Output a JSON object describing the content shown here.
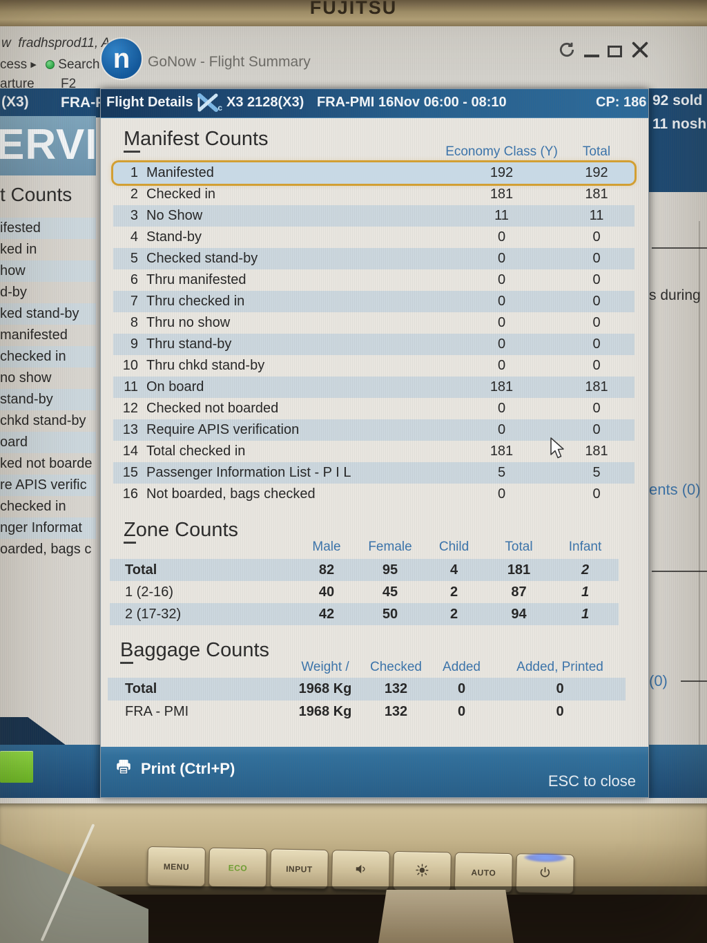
{
  "colors": {
    "accent_blue": "#3b74ab",
    "navy_bar": "#1d4a74",
    "stripe": "#ccd7de",
    "highlight_border": "#d29f33",
    "print_bar": "#31709c",
    "green_button": "#72c230",
    "eco_green": "#6f9e33"
  },
  "monitor": {
    "brand": "FUJITSU",
    "buttons": [
      {
        "label": "MENU",
        "icon": null
      },
      {
        "label": "ECO",
        "icon": null,
        "eco": true
      },
      {
        "label": "INPUT",
        "icon": null
      },
      {
        "label": "",
        "icon": "speaker"
      },
      {
        "label": "",
        "icon": "brightness"
      },
      {
        "label": "AUTO",
        "icon": null
      },
      {
        "label": "",
        "icon": "power",
        "led": true
      }
    ]
  },
  "background_window": {
    "frag_line1a": "w",
    "frag_line1b": "fradhsprod11, A",
    "frag_line2a": "cess",
    "frag_search": "Search",
    "frag_line3a": "arture",
    "frag_f2": "F2",
    "logo_letter": "n",
    "app_title": "GoNow - Flight Summary",
    "bar_left1": "(X3)",
    "bar_left2": "FRA-P",
    "bar_right1": "92 sold",
    "bar_right2": "11 nosh",
    "watermark": "ERVIE",
    "left_heading": "t Counts",
    "left_rows": [
      "ifested",
      "ked in",
      "how",
      "d-by",
      "ked stand-by",
      "manifested",
      "checked in",
      "no show",
      "stand-by",
      "chkd stand-by",
      "oard",
      "ked not boarde",
      "re APIS verific",
      "checked in",
      "nger Informat",
      "oarded, bags c"
    ],
    "right_frag_during": "s during",
    "right_frag_ents": "ents (0)",
    "right_frag_zero": "(0)",
    "icons": {
      "expand_arrow": "▶"
    }
  },
  "dialog": {
    "header": {
      "title": "Flight Details |",
      "flight": "X3 2128(X3)",
      "route": "FRA-PMI",
      "datetime": "16Nov 06:00 - 08:10",
      "cp": "CP: 186"
    },
    "manifest": {
      "title": "Manifest Counts",
      "col_eco": "Economy Class (Y)",
      "col_total": "Total",
      "rows": [
        {
          "num": "1",
          "label": "Manifested",
          "eco": "192",
          "total": "192",
          "highlight": true
        },
        {
          "num": "2",
          "label": "Checked in",
          "eco": "181",
          "total": "181"
        },
        {
          "num": "3",
          "label": "No Show",
          "eco": "11",
          "total": "11"
        },
        {
          "num": "4",
          "label": "Stand-by",
          "eco": "0",
          "total": "0"
        },
        {
          "num": "5",
          "label": "Checked stand-by",
          "eco": "0",
          "total": "0"
        },
        {
          "num": "6",
          "label": "Thru manifested",
          "eco": "0",
          "total": "0"
        },
        {
          "num": "7",
          "label": "Thru checked in",
          "eco": "0",
          "total": "0"
        },
        {
          "num": "8",
          "label": "Thru no show",
          "eco": "0",
          "total": "0"
        },
        {
          "num": "9",
          "label": "Thru stand-by",
          "eco": "0",
          "total": "0"
        },
        {
          "num": "10",
          "label": "Thru chkd stand-by",
          "eco": "0",
          "total": "0"
        },
        {
          "num": "11",
          "label": "On board",
          "eco": "181",
          "total": "181"
        },
        {
          "num": "12",
          "label": "Checked not boarded",
          "eco": "0",
          "total": "0"
        },
        {
          "num": "13",
          "label": "Require APIS verification",
          "eco": "0",
          "total": "0"
        },
        {
          "num": "14",
          "label": "Total checked in",
          "eco": "181",
          "total": "181"
        },
        {
          "num": "15",
          "label": "Passenger Information List - P I L",
          "eco": "5",
          "total": "5"
        },
        {
          "num": "16",
          "label": "Not boarded, bags checked",
          "eco": "0",
          "total": "0"
        }
      ]
    },
    "zone": {
      "title": "Zone Counts",
      "columns": [
        "Male",
        "Female",
        "Child",
        "Total",
        "Infant"
      ],
      "rows": [
        {
          "label": "Total",
          "bold": true,
          "values": [
            "82",
            "95",
            "4",
            "181",
            "2"
          ]
        },
        {
          "label": "1 (2-16)",
          "bold": false,
          "values": [
            "40",
            "45",
            "2",
            "87",
            "1"
          ]
        },
        {
          "label": "2 (17-32)",
          "bold": false,
          "values": [
            "42",
            "50",
            "2",
            "94",
            "1"
          ]
        }
      ]
    },
    "baggage": {
      "title": "Baggage Counts",
      "columns": [
        "Weight /",
        "Checked",
        "Added",
        "Added, Printed"
      ],
      "rows": [
        {
          "label": "Total",
          "bold": true,
          "values": [
            "1968 Kg",
            "132",
            "0",
            "0"
          ]
        },
        {
          "label": "FRA - PMI",
          "bold": false,
          "values": [
            "1968 Kg",
            "132",
            "0",
            "0"
          ]
        }
      ]
    },
    "footer": {
      "print": "Print (Ctrl+P)",
      "esc": "ESC to close"
    }
  }
}
